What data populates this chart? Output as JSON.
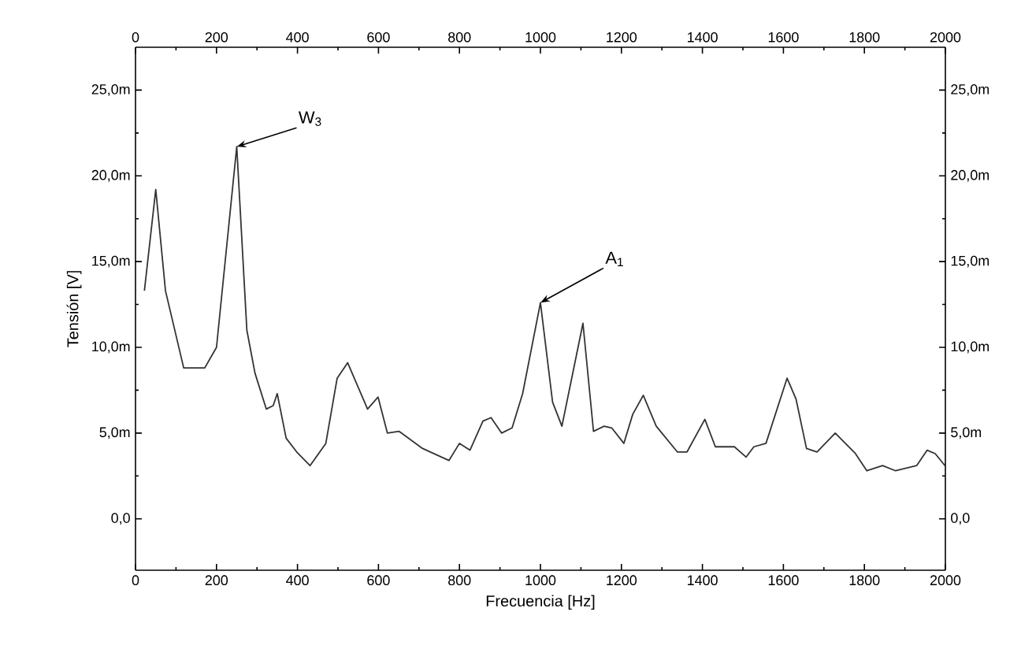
{
  "chart_data": {
    "type": "line",
    "xlabel": "Frecuencia [Hz]",
    "ylabel": "Tensión [V]",
    "x": [
      22,
      50,
      74,
      119,
      171,
      200,
      250,
      275,
      295,
      323,
      340,
      350,
      372,
      398,
      431,
      470,
      498,
      524,
      573,
      599,
      622,
      651,
      709,
      774,
      800,
      826,
      858,
      878,
      904,
      930,
      956,
      1000,
      1030,
      1053,
      1105,
      1131,
      1157,
      1176,
      1206,
      1228,
      1254,
      1286,
      1338,
      1362,
      1406,
      1432,
      1479,
      1508,
      1527,
      1557,
      1609,
      1631,
      1657,
      1683,
      1728,
      1778,
      1806,
      1845,
      1877,
      1929,
      1955,
      1975,
      1999
    ],
    "series": [
      {
        "color": "#333333",
        "values": [
          13.3,
          19.2,
          13.3,
          8.8,
          8.8,
          10.0,
          21.7,
          11.0,
          8.5,
          6.4,
          6.6,
          7.3,
          4.7,
          3.9,
          3.1,
          4.4,
          8.2,
          9.1,
          6.4,
          7.1,
          5.0,
          5.1,
          4.1,
          3.4,
          4.4,
          4.0,
          5.7,
          5.9,
          5.0,
          5.3,
          7.3,
          12.6,
          6.8,
          5.4,
          11.4,
          5.1,
          5.4,
          5.3,
          4.4,
          6.1,
          7.2,
          5.4,
          3.9,
          3.9,
          5.8,
          4.2,
          4.2,
          3.6,
          4.2,
          4.4,
          8.2,
          7.0,
          4.1,
          3.9,
          5.0,
          3.8,
          2.8,
          3.1,
          2.8,
          3.1,
          4.0,
          3.8,
          3.1
        ]
      }
    ],
    "xlim": [
      0,
      2000
    ],
    "xticks": [
      0,
      200,
      400,
      600,
      800,
      1000,
      1200,
      1400,
      1600,
      1800,
      2000
    ],
    "x2lim": [
      0,
      2000
    ],
    "x2ticks": [
      0,
      200,
      400,
      600,
      800,
      1000,
      1200,
      1400,
      1600,
      1800,
      2000
    ],
    "ylim": [
      -3,
      27.5
    ],
    "yticks": [
      {
        "value": 0,
        "label": "0,0"
      },
      {
        "value": 5,
        "label": "5,0m"
      },
      {
        "value": 10,
        "label": "10,0m"
      },
      {
        "value": 15,
        "label": "15,0m"
      },
      {
        "value": 20,
        "label": "20,0m"
      },
      {
        "value": 25,
        "label": "25,0m"
      }
    ],
    "y2lim": [
      -3,
      27.5
    ],
    "y2ticks": [
      {
        "value": 0,
        "label": "0,0"
      },
      {
        "value": 5,
        "label": "5,0m"
      },
      {
        "value": 10,
        "label": "10,0m"
      },
      {
        "value": 15,
        "label": "15,0m"
      },
      {
        "value": 20,
        "label": "20,0m"
      },
      {
        "value": 25,
        "label": "25,0m"
      }
    ],
    "annotations": [
      {
        "text": "W$_{3}$",
        "x": 250,
        "y": 21.7
      },
      {
        "text": "A$_{1}$",
        "x": 1000,
        "y": 12.6
      }
    ],
    "marker": "none",
    "line_style": "solid"
  }
}
